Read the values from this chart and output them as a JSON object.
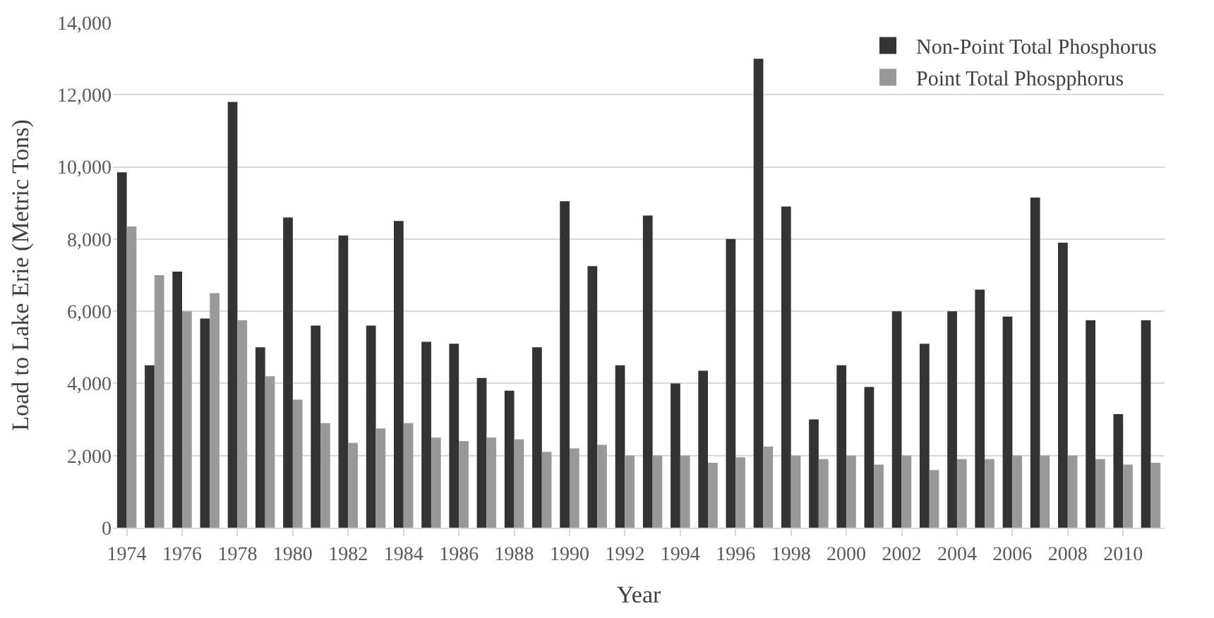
{
  "chart_data": {
    "type": "bar",
    "xlabel": "Year",
    "ylabel": "Load to Lake Erie (Metric Tons)",
    "categories": [
      "1974",
      null,
      "1976",
      null,
      "1978",
      null,
      "1980",
      null,
      "1982",
      null,
      "1984",
      null,
      "1986",
      null,
      "1988",
      null,
      "1990",
      null,
      "1992",
      null,
      "1994",
      null,
      "1996",
      null,
      "1998",
      null,
      "2000",
      null,
      "2002",
      null,
      "2004",
      null,
      "2006",
      null,
      "2008",
      null,
      "2010",
      null
    ],
    "series": [
      {
        "name": "Non-Point Total Phosphorus",
        "color": "#333333",
        "values": [
          9850,
          4500,
          7100,
          5800,
          11800,
          5000,
          8600,
          5600,
          8100,
          5600,
          8500,
          5150,
          5100,
          4150,
          3800,
          5000,
          9050,
          7250,
          4500,
          8650,
          4000,
          4350,
          8000,
          13000,
          8900,
          3000,
          4500,
          3900,
          6000,
          5100,
          6000,
          6600,
          5850,
          9150,
          7900,
          5750,
          3150,
          5750
        ]
      },
      {
        "name": "Point Total Phospphorus",
        "color": "#999999",
        "values": [
          8350,
          7000,
          6000,
          6500,
          5750,
          4200,
          3550,
          2900,
          2350,
          2750,
          2900,
          2500,
          2400,
          2500,
          2450,
          2100,
          2200,
          2300,
          2000,
          2000,
          2000,
          1800,
          1950,
          2250,
          2000,
          1900,
          2000,
          1750,
          2000,
          1600,
          1900,
          1900,
          2000,
          2000,
          2000,
          1900,
          1750,
          1800
        ]
      }
    ],
    "ylim": [
      0,
      14000
    ],
    "yticks": [
      {
        "value": 0,
        "label": "0"
      },
      {
        "value": 2000,
        "label": "2,000"
      },
      {
        "value": 4000,
        "label": "4,000"
      },
      {
        "value": 6000,
        "label": "6,000"
      },
      {
        "value": 8000,
        "label": "8,000"
      },
      {
        "value": 10000,
        "label": "10,000"
      },
      {
        "value": 12000,
        "label": "12,000"
      },
      {
        "value": 14000,
        "label": "14,000"
      }
    ],
    "grid": "y",
    "legend": "top right"
  }
}
